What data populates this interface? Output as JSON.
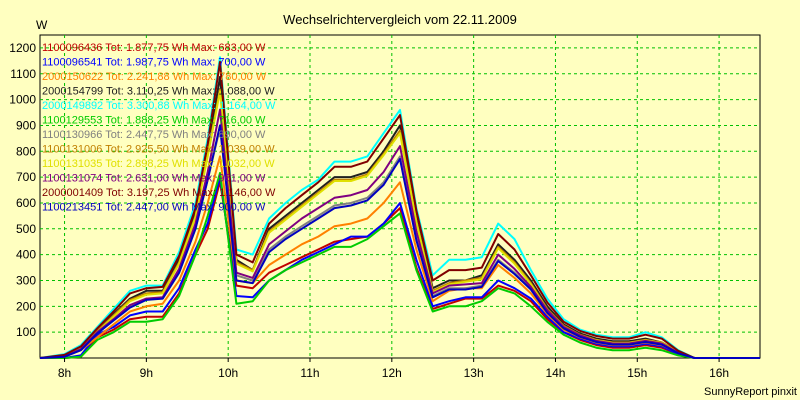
{
  "chart_data": {
    "type": "line",
    "title": "Wechselrichtervergleich vom 22.11.2009",
    "ylabel": "W",
    "xlabel": "",
    "footer": "SunnyReport pinxit",
    "xlim": [
      7.7,
      16.5
    ],
    "ylim": [
      0,
      1250
    ],
    "x_ticks": [
      8,
      9,
      10,
      11,
      12,
      13,
      14,
      15,
      16
    ],
    "x_tick_labels": [
      "8h",
      "9h",
      "10h",
      "11h",
      "12h",
      "13h",
      "14h",
      "15h",
      "16h"
    ],
    "y_ticks": [
      100,
      200,
      300,
      400,
      500,
      600,
      700,
      800,
      900,
      1000,
      1100,
      1200
    ],
    "grid": true,
    "legend_position": "top-left",
    "x": [
      7.7,
      8.0,
      8.2,
      8.4,
      8.6,
      8.8,
      9.0,
      9.2,
      9.4,
      9.6,
      9.75,
      9.9,
      10.1,
      10.3,
      10.5,
      10.7,
      10.9,
      11.1,
      11.3,
      11.5,
      11.7,
      11.9,
      12.1,
      12.3,
      12.5,
      12.7,
      12.9,
      13.1,
      13.3,
      13.5,
      13.7,
      13.9,
      14.1,
      14.3,
      14.5,
      14.7,
      14.9,
      15.1,
      15.3,
      15.5,
      15.7,
      15.9,
      16.1,
      16.3,
      16.5
    ],
    "series": [
      {
        "name": "1100096436 Tot: 1.877,75 Wh Max: 683,00 W",
        "color": "#c00000",
        "values": [
          0,
          0,
          5,
          80,
          110,
          150,
          160,
          160,
          250,
          400,
          500,
          683,
          280,
          270,
          330,
          360,
          390,
          420,
          450,
          460,
          470,
          520,
          580,
          350,
          190,
          210,
          230,
          230,
          280,
          260,
          220,
          150,
          100,
          70,
          50,
          40,
          40,
          50,
          40,
          15,
          0,
          0,
          0,
          0,
          0
        ]
      },
      {
        "name": "1100096541 Tot: 1.987,75 Wh Max: 700,00 W",
        "color": "#0000ff",
        "values": [
          0,
          0,
          10,
          90,
          120,
          165,
          180,
          180,
          270,
          420,
          520,
          700,
          240,
          235,
          300,
          340,
          380,
          410,
          440,
          470,
          470,
          520,
          600,
          380,
          200,
          220,
          235,
          235,
          300,
          270,
          230,
          160,
          100,
          75,
          55,
          45,
          45,
          55,
          45,
          15,
          0,
          0,
          0,
          0,
          0
        ]
      },
      {
        "name": "2000150622 Tot: 2.241,88 Wh Max: 780,00 W",
        "color": "#ff8000",
        "values": [
          0,
          5,
          30,
          80,
          130,
          180,
          200,
          210,
          300,
          450,
          600,
          780,
          300,
          290,
          360,
          400,
          440,
          470,
          510,
          520,
          540,
          600,
          680,
          420,
          220,
          260,
          270,
          270,
          360,
          310,
          250,
          170,
          110,
          80,
          60,
          50,
          50,
          60,
          50,
          20,
          0,
          0,
          0,
          0,
          0
        ]
      },
      {
        "name": "2000154799 Tot: 3.110,25 Wh Max: 1.088,00 W",
        "color": "#202020",
        "values": [
          0,
          10,
          40,
          110,
          170,
          230,
          260,
          260,
          380,
          560,
          800,
          1088,
          380,
          340,
          500,
          550,
          600,
          650,
          700,
          700,
          720,
          800,
          900,
          540,
          270,
          300,
          300,
          320,
          440,
          380,
          300,
          200,
          130,
          95,
          75,
          65,
          65,
          75,
          60,
          25,
          0,
          0,
          0,
          0,
          0
        ]
      },
      {
        "name": "2000149892 Tot: 3.300,88 Wh Max: 1.164,00 W",
        "color": "#00ffff",
        "values": [
          0,
          15,
          50,
          120,
          190,
          260,
          280,
          280,
          410,
          600,
          850,
          1164,
          420,
          400,
          540,
          600,
          650,
          690,
          760,
          760,
          780,
          870,
          960,
          580,
          320,
          380,
          380,
          390,
          520,
          460,
          340,
          230,
          150,
          110,
          90,
          80,
          80,
          100,
          80,
          30,
          0,
          0,
          0,
          0,
          0
        ]
      },
      {
        "name": "1100129553 Tot: 1.888,25 Wh Max: 716,00 W",
        "color": "#00cc00",
        "values": [
          0,
          0,
          5,
          70,
          100,
          140,
          140,
          150,
          240,
          400,
          550,
          716,
          210,
          220,
          300,
          340,
          370,
          400,
          430,
          430,
          460,
          510,
          560,
          340,
          180,
          200,
          200,
          220,
          270,
          250,
          200,
          140,
          90,
          60,
          40,
          30,
          30,
          40,
          30,
          10,
          0,
          0,
          0,
          0,
          0
        ]
      },
      {
        "name": "1100130966 Tot: 2.447,75 Wh Max: 890,00 W",
        "color": "#808080",
        "values": [
          0,
          5,
          35,
          95,
          150,
          200,
          230,
          230,
          330,
          500,
          690,
          890,
          320,
          300,
          420,
          470,
          510,
          550,
          590,
          600,
          620,
          680,
          780,
          460,
          240,
          270,
          270,
          280,
          380,
          330,
          270,
          180,
          120,
          85,
          65,
          55,
          55,
          65,
          55,
          20,
          0,
          0,
          0,
          0,
          0
        ]
      },
      {
        "name": "1100131006 Tot: 2.925,50 Wh Max: 1.039,00 W",
        "color": "#c08000",
        "values": [
          0,
          8,
          40,
          105,
          165,
          225,
          250,
          255,
          370,
          550,
          790,
          1039,
          370,
          340,
          490,
          540,
          590,
          640,
          690,
          690,
          710,
          790,
          880,
          530,
          260,
          290,
          300,
          310,
          430,
          370,
          290,
          190,
          125,
          90,
          70,
          60,
          60,
          70,
          60,
          25,
          0,
          0,
          0,
          0,
          0
        ]
      },
      {
        "name": "1100131035 Tot: 2.898,25 Wh Max: 1.032,00 W",
        "color": "#e0e000",
        "values": [
          0,
          8,
          38,
          100,
          160,
          220,
          245,
          250,
          365,
          545,
          780,
          1032,
          365,
          335,
          485,
          535,
          585,
          635,
          685,
          685,
          705,
          785,
          870,
          525,
          255,
          285,
          295,
          305,
          425,
          365,
          285,
          185,
          120,
          88,
          68,
          58,
          58,
          68,
          58,
          22,
          0,
          0,
          0,
          0,
          0
        ]
      },
      {
        "name": "1100131074 Tot: 2.631,00 Wh Max: 961,00 W",
        "color": "#800080",
        "values": [
          0,
          5,
          35,
          100,
          150,
          205,
          230,
          235,
          345,
          520,
          720,
          961,
          330,
          310,
          440,
          490,
          540,
          580,
          620,
          630,
          650,
          720,
          820,
          490,
          250,
          280,
          285,
          290,
          400,
          345,
          275,
          185,
          120,
          88,
          66,
          56,
          56,
          66,
          56,
          20,
          0,
          0,
          0,
          0,
          0
        ]
      },
      {
        "name": "2000001409 Tot: 3.197,25 Wh Max: 1.146,00 W",
        "color": "#800000",
        "values": [
          0,
          12,
          45,
          115,
          180,
          250,
          270,
          275,
          395,
          580,
          830,
          1146,
          400,
          370,
          520,
          580,
          630,
          680,
          740,
          740,
          760,
          850,
          940,
          570,
          300,
          340,
          340,
          350,
          480,
          420,
          320,
          215,
          140,
          105,
          85,
          75,
          75,
          90,
          75,
          28,
          0,
          0,
          0,
          0,
          0
        ]
      },
      {
        "name": "1100213451 Tot: 2.447,00 Wh Max: 900,00 W",
        "color": "#0000c0",
        "values": [
          0,
          5,
          30,
          95,
          145,
          195,
          225,
          230,
          330,
          500,
          690,
          900,
          300,
          290,
          410,
          460,
          500,
          540,
          580,
          590,
          610,
          670,
          770,
          455,
          235,
          265,
          265,
          275,
          375,
          325,
          265,
          175,
          115,
          82,
          62,
          52,
          52,
          62,
          52,
          18,
          0,
          0,
          0,
          0,
          0
        ]
      }
    ]
  }
}
